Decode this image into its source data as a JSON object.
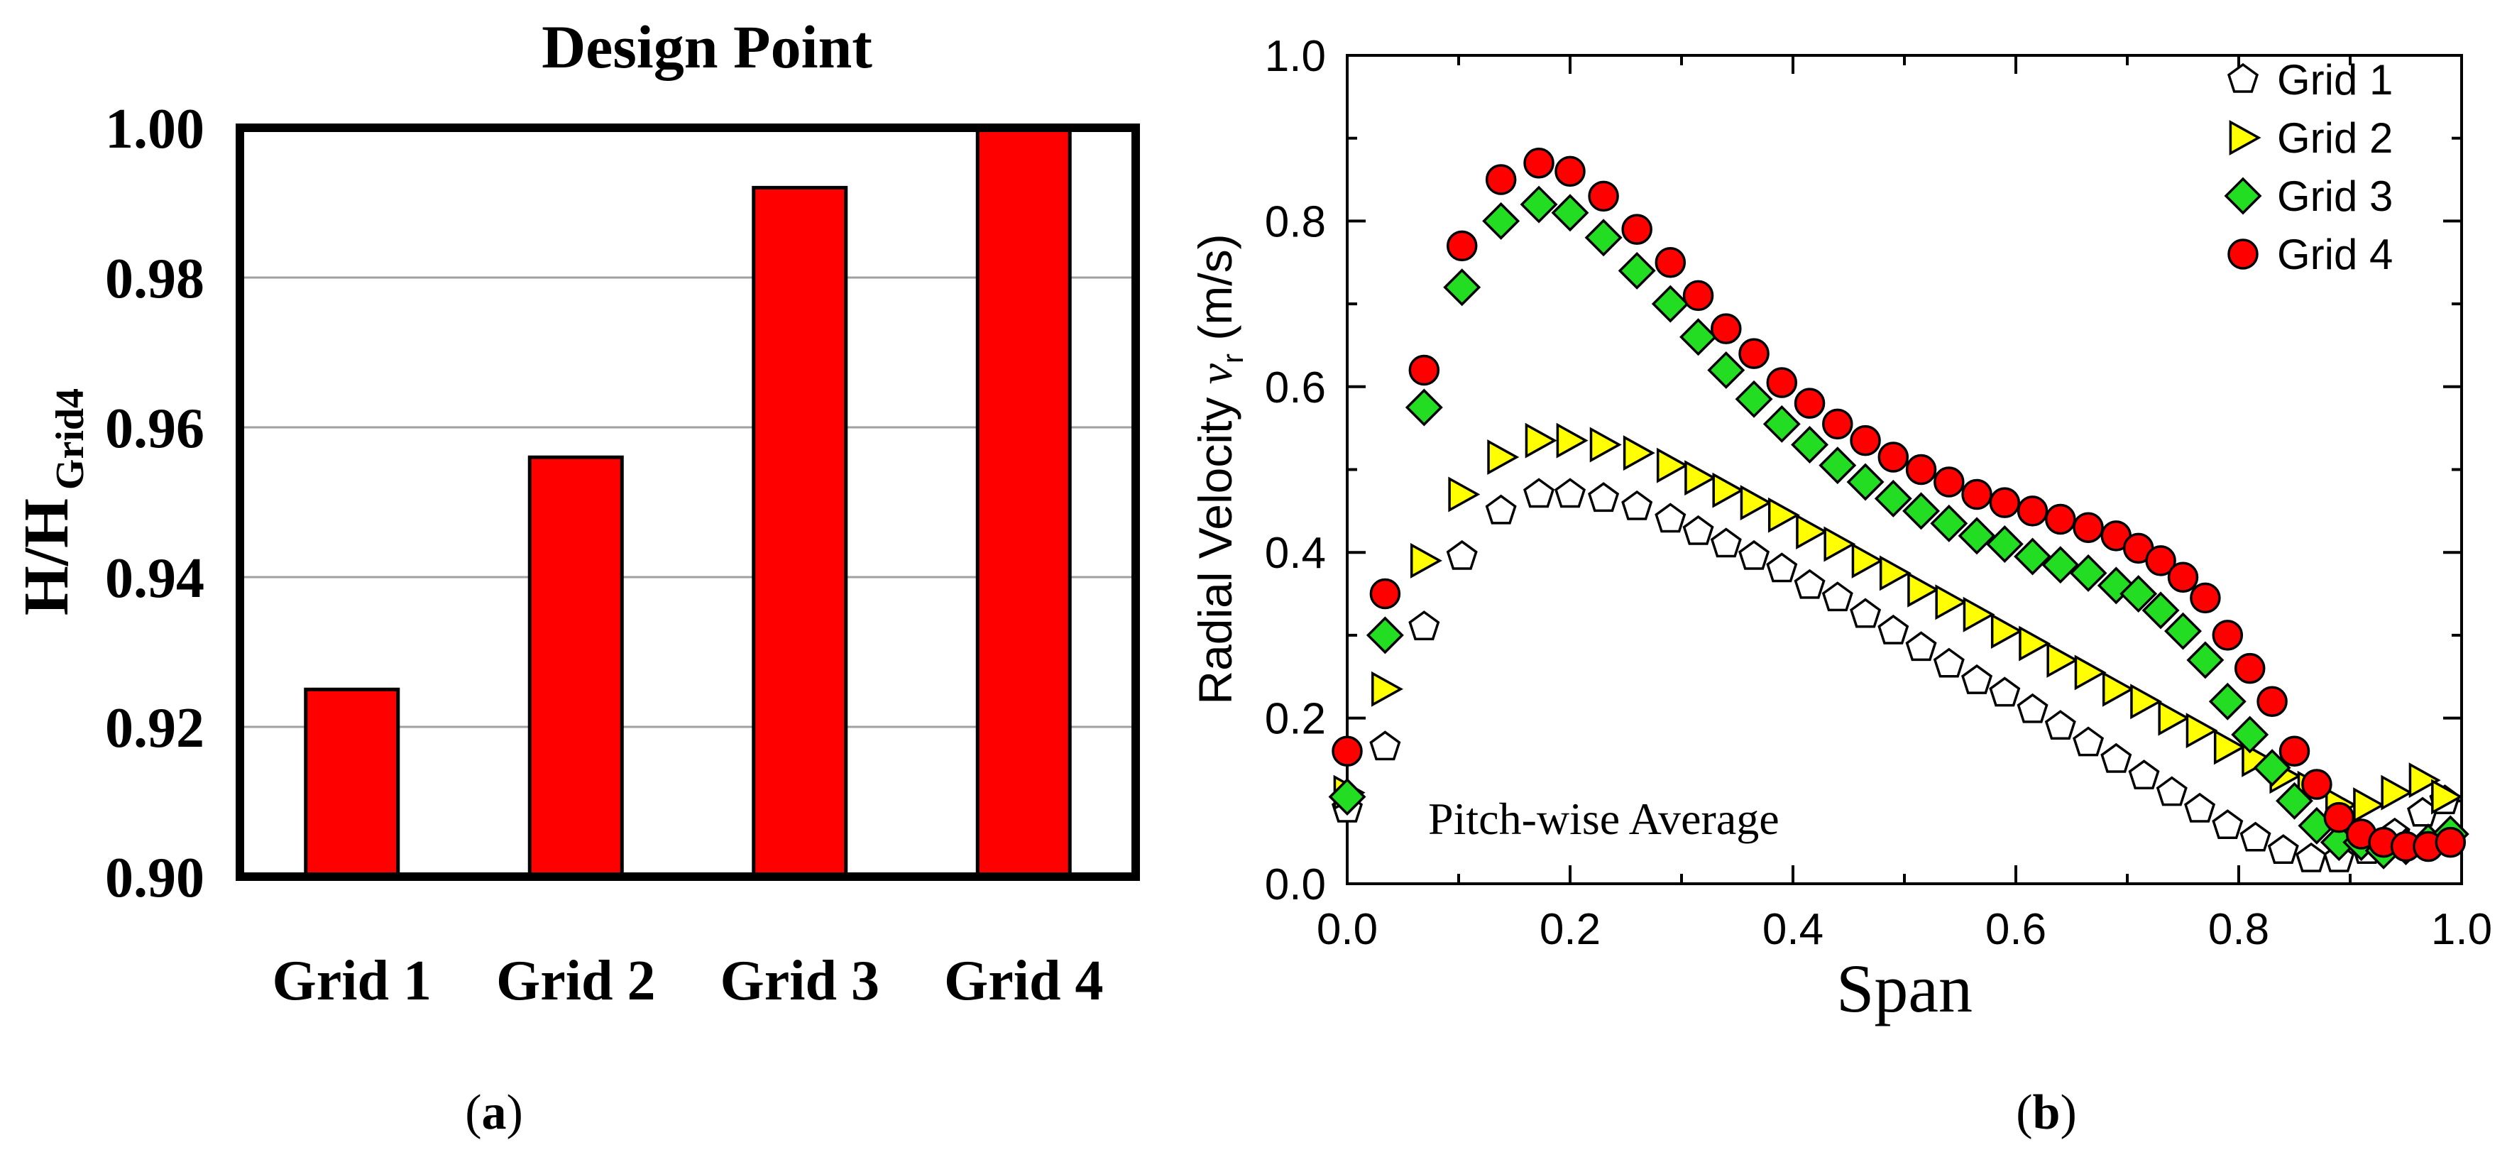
{
  "chart_data": [
    {
      "id": "a",
      "type": "bar",
      "title": "Design Point",
      "ylabel_main": "H/H",
      "ylabel_sub": "Grid4",
      "xlabel": "",
      "categories": [
        "Grid 1",
        "Grid 2",
        "Grid 3",
        "Grid 4"
      ],
      "values": [
        0.925,
        0.956,
        0.992,
        1.0
      ],
      "ylim": [
        0.9,
        1.0
      ],
      "yticks": [
        "0.90",
        "0.92",
        "0.94",
        "0.96",
        "0.98",
        "1.00"
      ],
      "ytick_values": [
        0.9,
        0.92,
        0.94,
        0.96,
        0.98,
        1.0
      ],
      "grid": true,
      "bar_color": "#ff0000",
      "caption_open": "(",
      "caption_letter": "a",
      "caption_close": ")"
    },
    {
      "id": "b",
      "type": "scatter",
      "xlabel": "Span",
      "ylabel_main": "Radial Velocity ",
      "ylabel_var": "v",
      "ylabel_sub": "r",
      "ylabel_unit": " (m/s)",
      "xlim": [
        0.0,
        1.0
      ],
      "ylim": [
        0.0,
        1.0
      ],
      "xticks": [
        "0.0",
        "0.2",
        "0.4",
        "0.6",
        "0.8",
        "1.0"
      ],
      "xtick_values": [
        0.0,
        0.2,
        0.4,
        0.6,
        0.8,
        1.0
      ],
      "yticks": [
        "0.0",
        "0.2",
        "0.4",
        "0.6",
        "0.8",
        "1.0"
      ],
      "ytick_values": [
        0.0,
        0.2,
        0.4,
        0.6,
        0.8,
        1.0
      ],
      "annotation": "Pitch-wise Average",
      "legend_position": "top-right",
      "caption_open": "(",
      "caption_letter": "b",
      "caption_close": ")",
      "series": [
        {
          "name": "Grid 1",
          "marker": "pentagon",
          "color": "#ffffff",
          "x": [
            0.0,
            0.034,
            0.069,
            0.103,
            0.138,
            0.172,
            0.2,
            0.23,
            0.26,
            0.29,
            0.315,
            0.34,
            0.365,
            0.39,
            0.415,
            0.44,
            0.465,
            0.49,
            0.515,
            0.54,
            0.565,
            0.59,
            0.615,
            0.64,
            0.665,
            0.69,
            0.715,
            0.74,
            0.765,
            0.79,
            0.815,
            0.84,
            0.865,
            0.89,
            0.915,
            0.94,
            0.965,
            0.985
          ],
          "y": [
            0.09,
            0.165,
            0.31,
            0.395,
            0.45,
            0.47,
            0.47,
            0.465,
            0.455,
            0.44,
            0.425,
            0.41,
            0.395,
            0.38,
            0.36,
            0.345,
            0.325,
            0.305,
            0.285,
            0.265,
            0.245,
            0.23,
            0.21,
            0.19,
            0.17,
            0.15,
            0.13,
            0.11,
            0.09,
            0.07,
            0.055,
            0.04,
            0.03,
            0.03,
            0.04,
            0.06,
            0.085,
            0.1
          ]
        },
        {
          "name": "Grid 2",
          "marker": "triangle-right",
          "color": "#ffff00",
          "x": [
            0.0,
            0.034,
            0.069,
            0.103,
            0.138,
            0.172,
            0.2,
            0.23,
            0.26,
            0.29,
            0.315,
            0.34,
            0.365,
            0.39,
            0.415,
            0.44,
            0.465,
            0.49,
            0.515,
            0.54,
            0.565,
            0.59,
            0.615,
            0.64,
            0.665,
            0.69,
            0.715,
            0.74,
            0.765,
            0.79,
            0.815,
            0.84,
            0.865,
            0.89,
            0.915,
            0.94,
            0.965,
            0.985
          ],
          "y": [
            0.11,
            0.235,
            0.39,
            0.47,
            0.515,
            0.535,
            0.535,
            0.53,
            0.52,
            0.505,
            0.49,
            0.475,
            0.46,
            0.445,
            0.425,
            0.41,
            0.39,
            0.375,
            0.355,
            0.34,
            0.325,
            0.305,
            0.29,
            0.27,
            0.255,
            0.235,
            0.22,
            0.2,
            0.185,
            0.165,
            0.15,
            0.13,
            0.115,
            0.095,
            0.095,
            0.11,
            0.125,
            0.105
          ]
        },
        {
          "name": "Grid 3",
          "marker": "diamond",
          "color": "#22dd22",
          "x": [
            0.0,
            0.034,
            0.069,
            0.103,
            0.138,
            0.172,
            0.2,
            0.23,
            0.26,
            0.29,
            0.315,
            0.34,
            0.365,
            0.39,
            0.415,
            0.44,
            0.465,
            0.49,
            0.515,
            0.54,
            0.565,
            0.59,
            0.615,
            0.64,
            0.665,
            0.69,
            0.71,
            0.73,
            0.75,
            0.77,
            0.79,
            0.81,
            0.83,
            0.85,
            0.87,
            0.89,
            0.91,
            0.93,
            0.95,
            0.97,
            0.99
          ],
          "y": [
            0.105,
            0.3,
            0.575,
            0.72,
            0.8,
            0.82,
            0.81,
            0.78,
            0.74,
            0.7,
            0.66,
            0.62,
            0.585,
            0.555,
            0.53,
            0.505,
            0.485,
            0.465,
            0.45,
            0.435,
            0.42,
            0.41,
            0.395,
            0.385,
            0.375,
            0.36,
            0.35,
            0.33,
            0.305,
            0.27,
            0.22,
            0.18,
            0.14,
            0.1,
            0.07,
            0.05,
            0.05,
            0.04,
            0.045,
            0.05,
            0.06
          ]
        },
        {
          "name": "Grid 4",
          "marker": "circle",
          "color": "#ff0000",
          "x": [
            0.0,
            0.034,
            0.069,
            0.103,
            0.138,
            0.172,
            0.2,
            0.23,
            0.26,
            0.29,
            0.315,
            0.34,
            0.365,
            0.39,
            0.415,
            0.44,
            0.465,
            0.49,
            0.515,
            0.54,
            0.565,
            0.59,
            0.615,
            0.64,
            0.665,
            0.69,
            0.71,
            0.73,
            0.75,
            0.77,
            0.79,
            0.81,
            0.83,
            0.85,
            0.87,
            0.89,
            0.91,
            0.93,
            0.95,
            0.97,
            0.99
          ],
          "y": [
            0.16,
            0.35,
            0.62,
            0.77,
            0.85,
            0.87,
            0.86,
            0.83,
            0.79,
            0.75,
            0.71,
            0.67,
            0.64,
            0.605,
            0.58,
            0.555,
            0.535,
            0.515,
            0.5,
            0.485,
            0.47,
            0.46,
            0.45,
            0.44,
            0.43,
            0.42,
            0.405,
            0.39,
            0.37,
            0.345,
            0.3,
            0.26,
            0.22,
            0.16,
            0.12,
            0.08,
            0.06,
            0.05,
            0.045,
            0.045,
            0.05
          ]
        }
      ]
    }
  ]
}
